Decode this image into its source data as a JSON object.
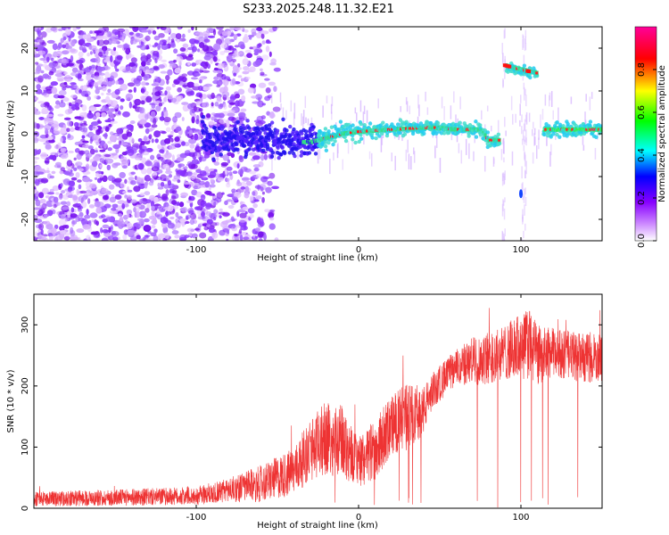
{
  "title": "S233.2025.248.11.32.E21",
  "chart_data": [
    {
      "type": "heatmap",
      "title": "S233.2025.248.11.32.E21",
      "xlabel": "Height of straight line (km)",
      "ylabel": "Frequency (Hz)",
      "xlim": [
        -200,
        150
      ],
      "ylim": [
        -25,
        25
      ],
      "xticks": [
        -100,
        0,
        100
      ],
      "yticks": [
        -20,
        -10,
        0,
        10,
        20
      ],
      "colorbar": {
        "label": "Normalized spectral amplitude",
        "range": [
          0,
          1
        ],
        "ticks": [
          0.0,
          0.2,
          0.4,
          0.6,
          0.8
        ],
        "tick_labels": [
          "0.0",
          "0.2",
          "0.4",
          "0.6",
          "0.8"
        ],
        "colors": [
          "#ffffff",
          "#8800ff",
          "#0000ff",
          "#00ffff",
          "#00ff00",
          "#ffff00",
          "#ff0000",
          "#ff00aa"
        ]
      },
      "ridge": [
        {
          "x": -95,
          "y": -2
        },
        {
          "x": -80,
          "y": -1
        },
        {
          "x": -60,
          "y": -1
        },
        {
          "x": -40,
          "y": -2
        },
        {
          "x": -30,
          "y": -2
        },
        {
          "x": -20,
          "y": -1
        },
        {
          "x": -10,
          "y": 0
        },
        {
          "x": 0,
          "y": 0.5
        },
        {
          "x": 20,
          "y": 1
        },
        {
          "x": 45,
          "y": 1.5
        },
        {
          "x": 60,
          "y": 1
        },
        {
          "x": 75,
          "y": 1
        },
        {
          "x": 80,
          "y": -1.5
        },
        {
          "x": 88,
          "y": -1.5
        },
        {
          "x": 90,
          "y": 16
        },
        {
          "x": 100,
          "y": 15
        },
        {
          "x": 112,
          "y": 14
        },
        {
          "x": 113,
          "y": 1
        },
        {
          "x": 150,
          "y": 1
        }
      ],
      "gaps": [
        [
          87,
          90
        ],
        [
          110,
          113
        ]
      ]
    },
    {
      "type": "line",
      "title": "",
      "xlabel": "Height of straight line (km)",
      "ylabel": "SNR (10 * v/v)",
      "xlim": [
        -200,
        150
      ],
      "ylim": [
        0,
        350
      ],
      "xticks": [
        -100,
        0,
        100
      ],
      "yticks": [
        0,
        100,
        200,
        300
      ],
      "series": [
        {
          "name": "SNR",
          "color": "#ee3333",
          "envelope_x": [
            -200,
            -100,
            -90,
            -80,
            -60,
            -40,
            -30,
            -20,
            -10,
            0,
            10,
            20,
            30,
            40,
            45,
            50,
            60,
            70,
            80,
            90,
            95,
            100,
            105,
            110,
            120,
            130,
            140,
            150
          ],
          "envelope_mean": [
            15,
            20,
            25,
            30,
            40,
            60,
            95,
            115,
            110,
            75,
            95,
            135,
            150,
            160,
            190,
            205,
            230,
            240,
            245,
            255,
            260,
            265,
            270,
            250,
            255,
            250,
            245,
            245
          ],
          "envelope_spread": [
            12,
            15,
            18,
            20,
            30,
            40,
            50,
            60,
            60,
            40,
            50,
            50,
            55,
            40,
            30,
            30,
            30,
            40,
            45,
            45,
            50,
            55,
            60,
            50,
            40,
            40,
            40,
            40
          ]
        }
      ]
    }
  ]
}
